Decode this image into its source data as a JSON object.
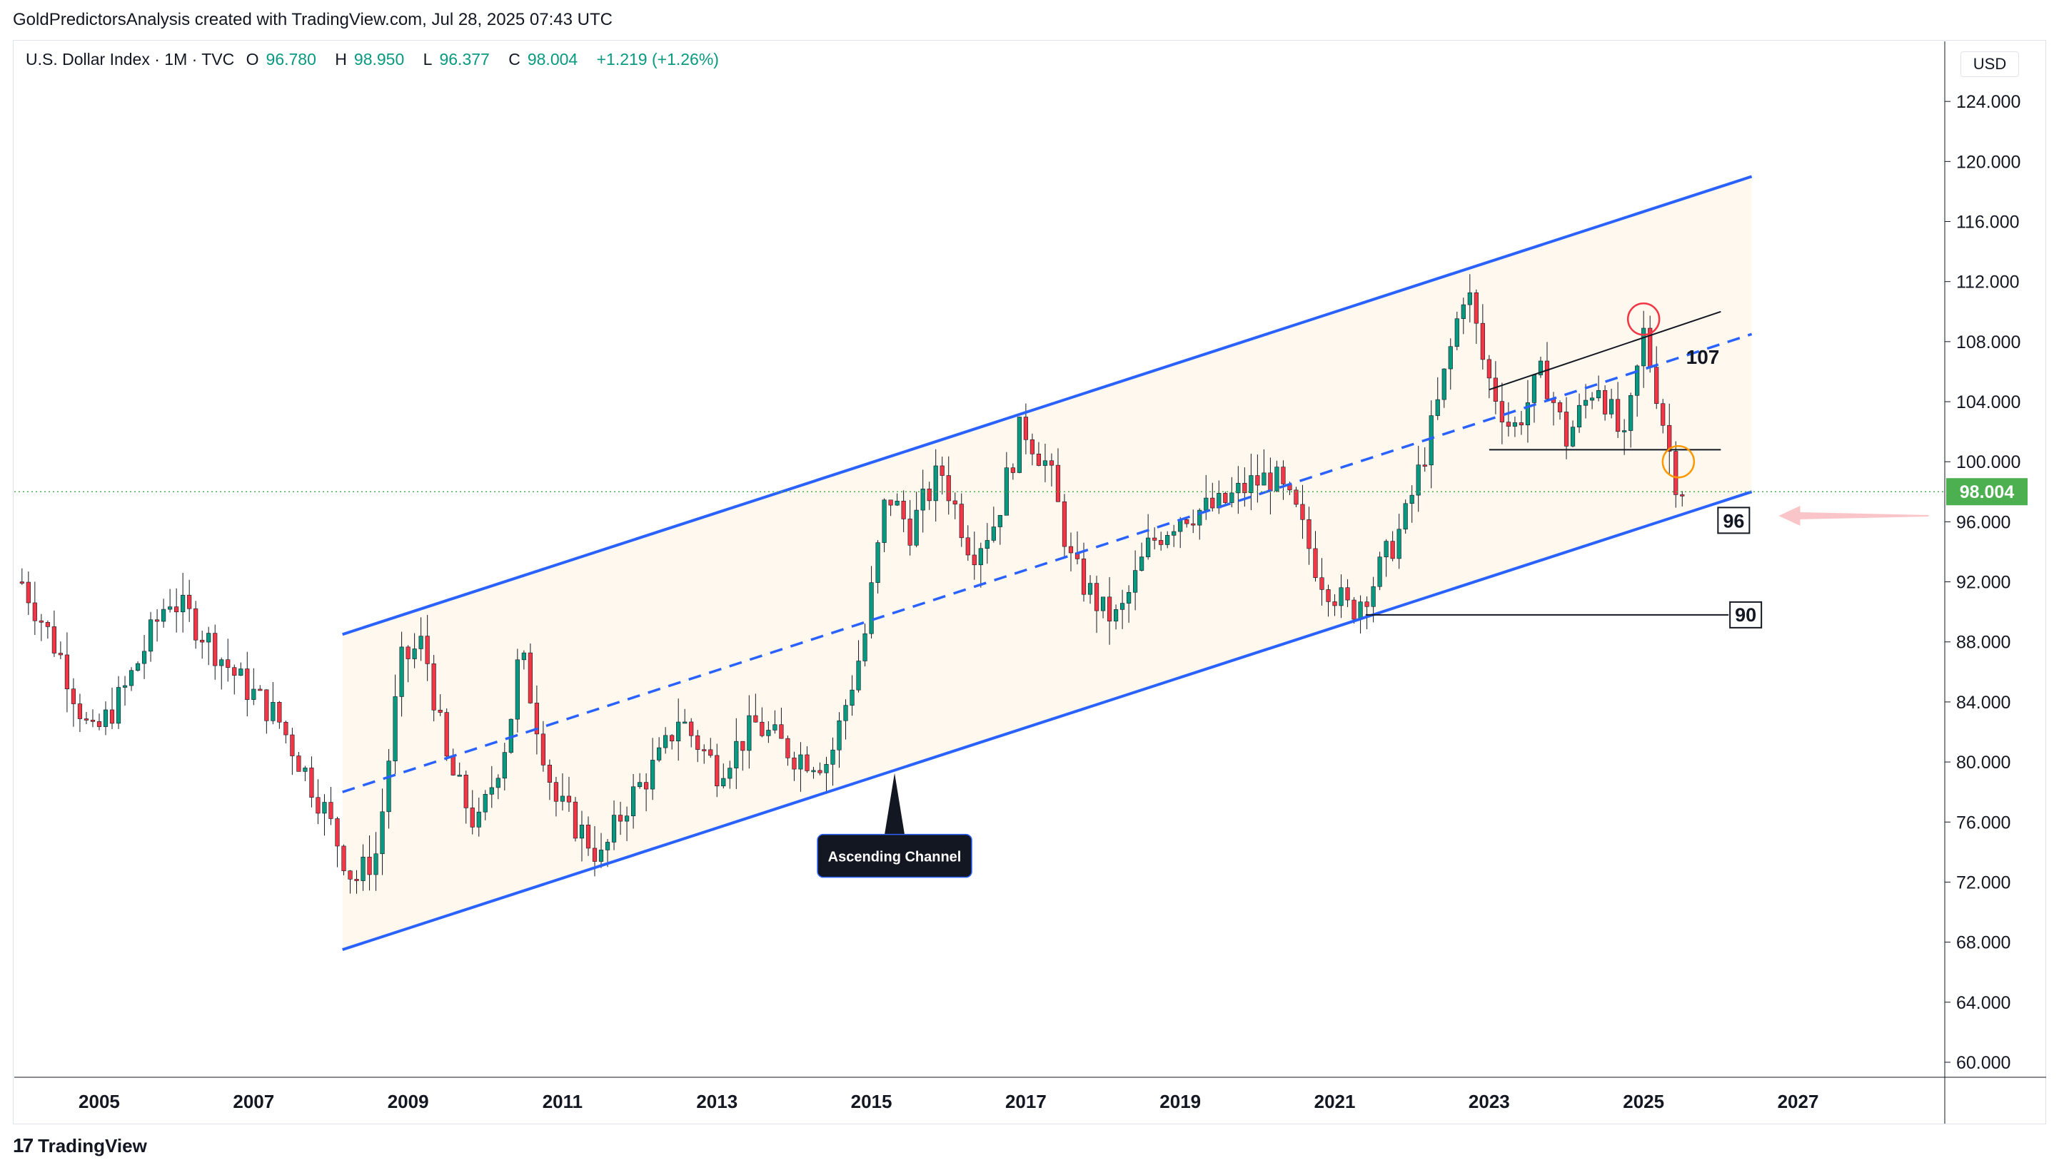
{
  "header": {
    "credit": "GoldPredictorsAnalysis created with TradingView.com, Jul 28, 2025 07:43 UTC",
    "symbol": "U.S. Dollar Index · 1M · TVC",
    "o_label": "O",
    "o_value": "96.780",
    "h_label": "H",
    "h_value": "98.950",
    "l_label": "L",
    "l_value": "96.377",
    "c_label": "C",
    "c_value": "98.004",
    "change": "+1.219 (+1.26%)",
    "currency": "USD"
  },
  "footer": {
    "brand": "TradingView",
    "logo_glyph": "17"
  },
  "colors": {
    "up": "#089981",
    "down": "#f23645",
    "channel": "#2962ff",
    "channel_fill": "#fff8ee",
    "price_line": "#4caf50",
    "price_badge": "#4caf50"
  },
  "annotations": {
    "channel_label": "Ascending Channel",
    "level_107": "107",
    "level_96": "96",
    "level_90": "90"
  },
  "chart_data": {
    "type": "candlestick",
    "title": "U.S. Dollar Index",
    "timeframe": "1M",
    "x_ticks": [
      "2005",
      "2007",
      "2009",
      "2011",
      "2013",
      "2015",
      "2017",
      "2019",
      "2021",
      "2023",
      "2025",
      "2027"
    ],
    "y_ticks": [
      "60.000",
      "64.000",
      "68.000",
      "72.000",
      "76.000",
      "80.000",
      "84.000",
      "88.000",
      "92.000",
      "96.000",
      "100.000",
      "104.000",
      "108.000",
      "112.000",
      "116.000",
      "120.000",
      "124.000"
    ],
    "ylim": [
      59,
      128
    ],
    "xlim": [
      2003.9,
      2028.9
    ],
    "last_price": "98.004",
    "closes_path": [
      [
        2004.0,
        92.0
      ],
      [
        2004.5,
        87.0
      ],
      [
        2004.9,
        81.5
      ],
      [
        2005.3,
        84.5
      ],
      [
        2005.9,
        91.0
      ],
      [
        2006.2,
        89.5
      ],
      [
        2006.8,
        85.5
      ],
      [
        2007.3,
        83.0
      ],
      [
        2007.9,
        77.0
      ],
      [
        2008.3,
        72.0
      ],
      [
        2008.6,
        74.0
      ],
      [
        2008.9,
        86.5
      ],
      [
        2009.2,
        88.0
      ],
      [
        2009.5,
        80.0
      ],
      [
        2009.9,
        75.5
      ],
      [
        2010.3,
        82.0
      ],
      [
        2010.45,
        87.5
      ],
      [
        2010.9,
        77.5
      ],
      [
        2011.3,
        75.0
      ],
      [
        2011.5,
        73.5
      ],
      [
        2011.8,
        77.0
      ],
      [
        2012.3,
        80.5
      ],
      [
        2012.5,
        83.0
      ],
      [
        2013.0,
        79.5
      ],
      [
        2013.5,
        82.5
      ],
      [
        2014.0,
        80.5
      ],
      [
        2014.45,
        80.0
      ],
      [
        2014.9,
        88.0
      ],
      [
        2015.2,
        98.0
      ],
      [
        2015.5,
        95.5
      ],
      [
        2015.9,
        99.5
      ],
      [
        2016.3,
        94.0
      ],
      [
        2016.6,
        96.0
      ],
      [
        2016.95,
        102.5
      ],
      [
        2017.3,
        99.5
      ],
      [
        2017.6,
        93.0
      ],
      [
        2018.0,
        90.0
      ],
      [
        2018.2,
        89.5
      ],
      [
        2018.6,
        94.5
      ],
      [
        2019.0,
        96.5
      ],
      [
        2019.5,
        97.0
      ],
      [
        2019.9,
        98.5
      ],
      [
        2020.2,
        99.0
      ],
      [
        2020.5,
        96.5
      ],
      [
        2020.8,
        92.5
      ],
      [
        2021.2,
        90.0
      ],
      [
        2021.5,
        92.0
      ],
      [
        2021.9,
        96.0
      ],
      [
        2022.3,
        103.0
      ],
      [
        2022.7,
        112.0
      ],
      [
        2022.95,
        106.0
      ],
      [
        2023.3,
        102.0
      ],
      [
        2023.7,
        106.0
      ],
      [
        2024.0,
        101.5
      ],
      [
        2024.4,
        105.5
      ],
      [
        2024.75,
        101.0
      ],
      [
        2025.0,
        108.5
      ],
      [
        2025.2,
        104.0
      ],
      [
        2025.4,
        99.0
      ],
      [
        2025.55,
        98.0
      ]
    ],
    "channel": {
      "upper": [
        [
          2008.15,
          88.5
        ],
        [
          2026.4,
          119.0
        ]
      ],
      "lower": [
        [
          2008.15,
          67.5
        ],
        [
          2026.4,
          98.0
        ]
      ],
      "mid": [
        [
          2008.15,
          78.0
        ],
        [
          2026.4,
          108.5
        ]
      ]
    },
    "pattern_lines": {
      "top": [
        [
          2023.0,
          104.8
        ],
        [
          2026.0,
          110.0
        ]
      ],
      "bottom": [
        [
          2023.0,
          100.8
        ],
        [
          2026.0,
          100.8
        ]
      ]
    },
    "support_90": [
      [
        2021.4,
        89.8
      ],
      [
        2026.1,
        89.8
      ]
    ],
    "grid": false
  }
}
